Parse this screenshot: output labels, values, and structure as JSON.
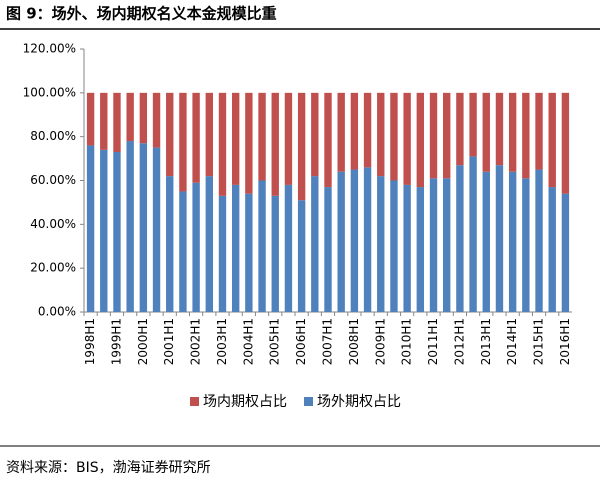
{
  "chart_data": {
    "type": "bar",
    "stacked": true,
    "title": "图 9：场外、场内期权名义本金规模比重",
    "source": "资料来源：BIS，渤海证券研究所",
    "categories": [
      "1998H1",
      null,
      "1999H1",
      null,
      "2000H1",
      null,
      "2001H1",
      null,
      "2002H1",
      null,
      "2003H1",
      null,
      "2004H1",
      null,
      "2005H1",
      null,
      "2006H1",
      null,
      "2007H1",
      null,
      "2008H1",
      null,
      "2009H1",
      null,
      "2010H1",
      null,
      "2011H1",
      null,
      "2012H1",
      null,
      "2013H1",
      null,
      "2014H1",
      null,
      "2015H1",
      null,
      "2016H1"
    ],
    "series": [
      {
        "name": "场外期权占比",
        "color": "#4f81bd",
        "values": [
          76,
          74,
          73,
          78,
          77,
          75,
          62,
          55,
          59,
          62,
          53,
          58,
          54,
          60,
          53,
          58,
          51,
          62,
          57,
          64,
          65,
          66,
          62,
          60,
          58,
          57,
          61,
          61,
          67,
          71,
          64,
          67,
          64,
          61,
          65,
          57,
          54
        ]
      },
      {
        "name": "场内期权占比",
        "color": "#c0504d",
        "values": [
          24,
          26,
          27,
          22,
          23,
          25,
          38,
          45,
          41,
          38,
          47,
          42,
          46,
          40,
          47,
          42,
          49,
          38,
          43,
          36,
          35,
          34,
          38,
          40,
          42,
          43,
          39,
          39,
          33,
          29,
          36,
          33,
          36,
          39,
          35,
          43,
          46
        ]
      }
    ],
    "legend_order": [
      "场内期权占比",
      "场外期权占比"
    ],
    "ylim": [
      0,
      120
    ],
    "yticks": [
      {
        "value": 0,
        "label": "0.00%"
      },
      {
        "value": 20,
        "label": "20.00%"
      },
      {
        "value": 40,
        "label": "40.00%"
      },
      {
        "value": 60,
        "label": "60.00%"
      },
      {
        "value": 80,
        "label": "80.00%"
      },
      {
        "value": 100,
        "label": "100.00%"
      },
      {
        "value": 120,
        "label": "120.00%"
      }
    ],
    "grid": false
  }
}
